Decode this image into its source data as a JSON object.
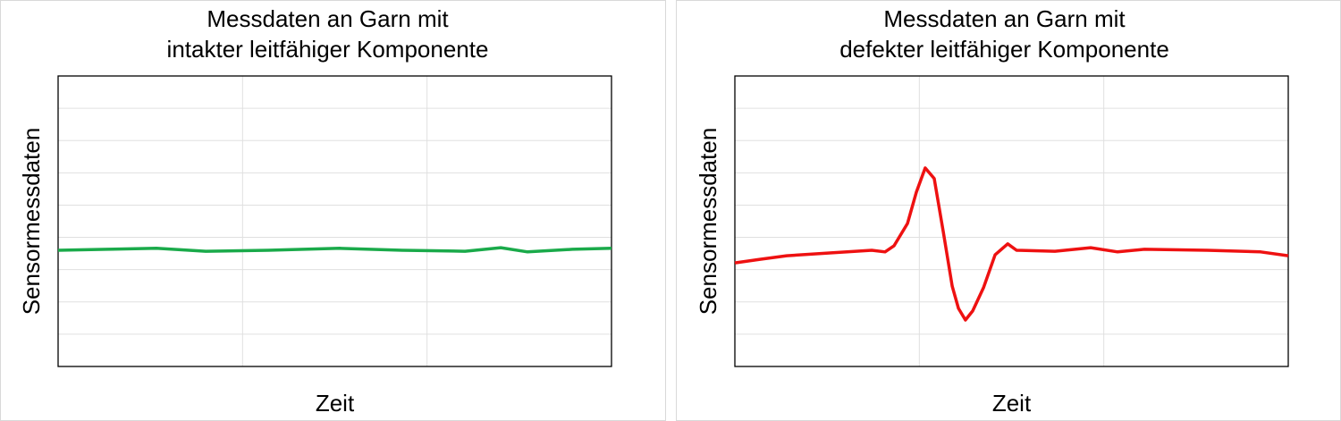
{
  "chart_data": [
    {
      "type": "line",
      "title": [
        "Messdaten an Garn mit",
        "intakter leitfähiger Komponente"
      ],
      "xlabel": "Zeit",
      "ylabel": "Sensormessdaten",
      "x": [
        0,
        0.267,
        0.533,
        0.8,
        1.139,
        1.527,
        1.866,
        2.206,
        2.4,
        2.545,
        2.788,
        3.0
      ],
      "values": [
        3.6,
        3.63,
        3.66,
        3.57,
        3.6,
        3.66,
        3.6,
        3.57,
        3.68,
        3.55,
        3.63,
        3.66
      ],
      "color": "#1aaa4a",
      "xlim": [
        0,
        3
      ],
      "ylim": [
        0,
        9
      ],
      "xticks": [
        0,
        1,
        2,
        3
      ],
      "yticks": [
        0,
        1,
        2,
        3,
        4,
        5,
        6,
        7,
        8,
        9
      ],
      "grid": true
    },
    {
      "type": "line",
      "title": [
        "Messdaten an Garn mit",
        "defekter leitfähiger Komponente"
      ],
      "xlabel": "Zeit",
      "ylabel": "Sensormessdaten",
      "x": [
        0,
        0.136,
        0.281,
        0.523,
        0.742,
        0.814,
        0.863,
        0.936,
        0.984,
        1.032,
        1.081,
        1.13,
        1.178,
        1.212,
        1.25,
        1.289,
        1.348,
        1.411,
        1.479,
        1.527,
        1.735,
        1.929,
        2.075,
        2.22,
        2.56,
        2.85,
        3.0
      ],
      "values": [
        3.21,
        3.32,
        3.43,
        3.52,
        3.6,
        3.55,
        3.74,
        4.43,
        5.4,
        6.15,
        5.82,
        4.16,
        2.49,
        1.8,
        1.44,
        1.72,
        2.44,
        3.46,
        3.8,
        3.6,
        3.57,
        3.68,
        3.55,
        3.63,
        3.6,
        3.55,
        3.43
      ],
      "color": "#ee1111",
      "xlim": [
        0,
        3
      ],
      "ylim": [
        0,
        9
      ],
      "xticks": [
        0,
        1,
        2,
        3
      ],
      "yticks": [
        0,
        1,
        2,
        3,
        4,
        5,
        6,
        7,
        8,
        9
      ],
      "grid": true
    }
  ]
}
